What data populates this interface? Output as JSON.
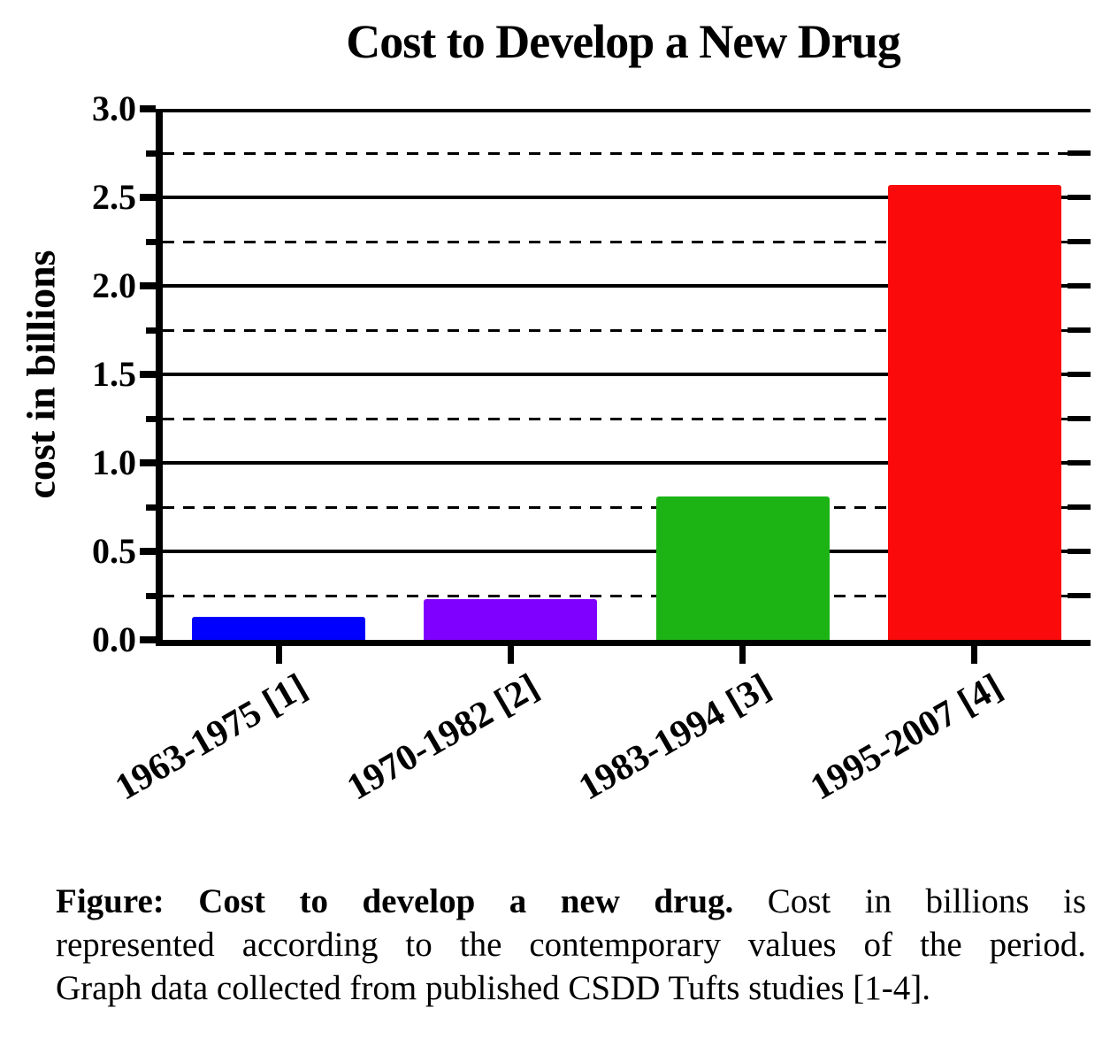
{
  "chart_data": {
    "type": "bar",
    "title": "Cost to Develop a New Drug",
    "xlabel": "",
    "ylabel": "cost in billions",
    "categories": [
      "1963-1975 [1]",
      "1970-1982 [2]",
      "1983-1994 [3]",
      "1995-2007 [4]"
    ],
    "values": [
      0.13,
      0.23,
      0.81,
      2.57
    ],
    "bar_colors": [
      "#0000ff",
      "#8000ff",
      "#1cb414",
      "#fa0a0a"
    ],
    "ylim": [
      0,
      3.0
    ],
    "ytick_major_step": 0.5,
    "ytick_minor_step": 0.25,
    "grid": "on",
    "grid_major_style": "solid",
    "grid_minor_style": "dashed",
    "legend_position": "none",
    "axis_color": "#000000",
    "background_color": "#ffffff"
  },
  "caption": {
    "line1_bold": "Figure: Cost to develop a new drug.",
    "line1_rest": "Cost in billions is",
    "line2": "represented according to the contemporary values of the period.",
    "line3": "Graph data collected from published CSDD Tufts studies [1-4]."
  }
}
